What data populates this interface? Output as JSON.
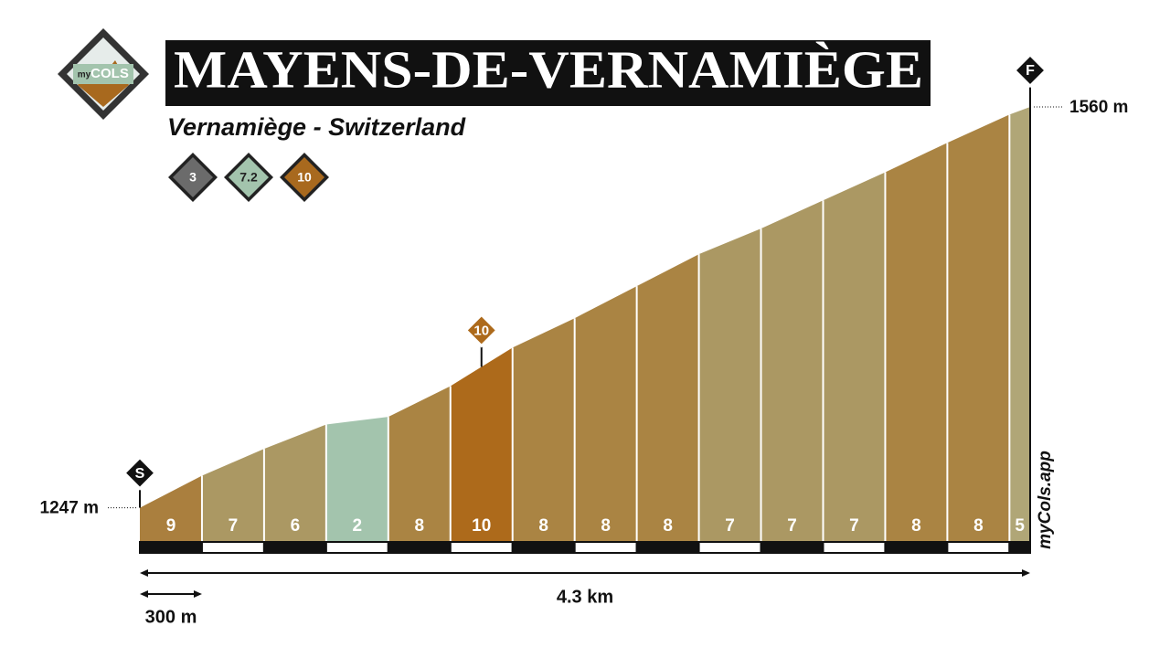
{
  "chart_data": {
    "type": "profile",
    "title": "MAYENS-DE-VERNAMIÈGE",
    "subtitle": "Vernamiège - Switzerland",
    "logo": {
      "prefix": "my",
      "name": "COLS"
    },
    "badges": [
      {
        "value": 3,
        "color": "#6b6b6b"
      },
      {
        "value": 7.2,
        "color": "#a3c4ad"
      },
      {
        "value": 10,
        "color": "#a8691e"
      }
    ],
    "x": [
      0,
      0.3,
      0.6,
      0.9,
      1.2,
      1.5,
      1.8,
      2.1,
      2.4,
      2.7,
      3.0,
      3.3,
      3.6,
      3.9,
      4.2,
      4.3
    ],
    "elevations": [
      1247,
      1272,
      1293,
      1312,
      1318,
      1342,
      1372,
      1395,
      1420,
      1445,
      1465,
      1487,
      1509,
      1532,
      1554,
      1560
    ],
    "gradients": [
      9,
      7,
      6,
      2,
      8,
      10,
      8,
      8,
      8,
      7,
      7,
      7,
      8,
      8,
      5
    ],
    "colors": [
      "#aa7f3e",
      "#ab9863",
      "#ab9863",
      "#a3c4ad",
      "#aa8443",
      "#ad6a1b",
      "#aa8443",
      "#aa8443",
      "#aa8443",
      "#ab9863",
      "#ab9863",
      "#ab9863",
      "#aa8443",
      "#aa8443",
      "#b0a677"
    ],
    "xlim": [
      0,
      4.3
    ],
    "ylim": [
      1221,
      1560
    ],
    "start_marker": "S",
    "finish_marker": "F",
    "start_label": {
      "value": 1247,
      "label": "1247 m"
    },
    "end_label": {
      "value": 1560,
      "label": "1560 m"
    },
    "max_marker": {
      "value": 10,
      "segment": 5
    },
    "distance": {
      "value": 4.3,
      "label": "4.3 km"
    },
    "scale": {
      "value": 300,
      "label": "300 m"
    },
    "watermark": "myCols.app"
  }
}
